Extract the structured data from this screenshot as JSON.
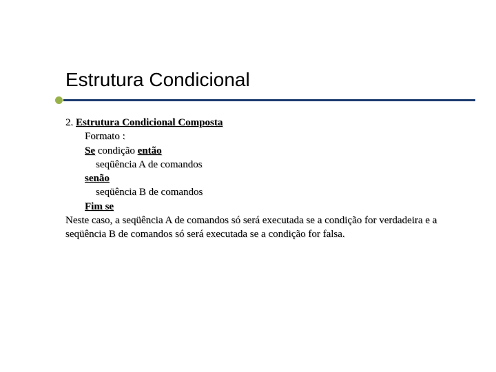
{
  "title": "Estrutura Condicional",
  "section": {
    "number": "2.",
    "heading": "Estrutura Condicional Composta",
    "format_label": "Formato :",
    "if_prefix": "Se",
    "if_cond": " condição ",
    "then_kw": "então",
    "seq_a": "seqüência A de comandos",
    "else_kw": "senão",
    "seq_b": "seqüência B de comandos",
    "end_kw": "Fim se",
    "paragraph": "Neste caso, a seqüência A de comandos só será executada se a condição for verdadeira e a seqüência B de comandos só será executada se a condição for falsa."
  },
  "colors": {
    "accent_bullet": "#98b24a",
    "rule_bar": "#1a3a6e",
    "text": "#000000",
    "background": "#ffffff"
  },
  "typography": {
    "title_fontsize": 28,
    "body_fontsize": 15,
    "title_family": "Arial",
    "body_family": "Times New Roman"
  }
}
